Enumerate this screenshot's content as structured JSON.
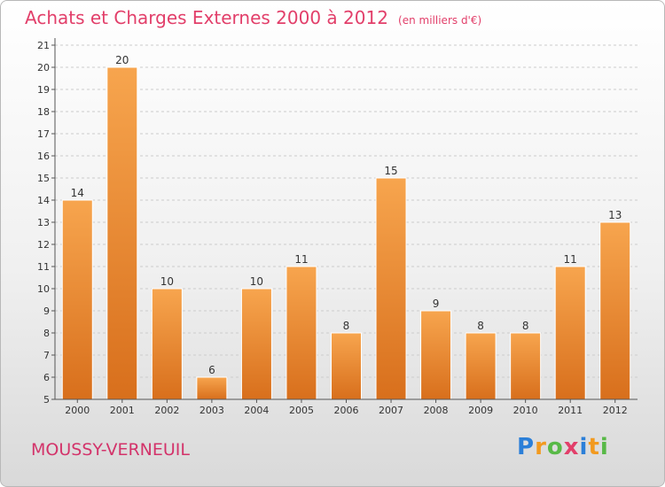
{
  "title": "Achats et Charges Externes 2000 à 2012",
  "unit": "(en milliers d'€)",
  "commune": "MOUSSY-VERNEUIL",
  "brand": {
    "letters": [
      {
        "ch": "P",
        "color": "#2b7fd8"
      },
      {
        "ch": "r",
        "color": "#f29a1f"
      },
      {
        "ch": "o",
        "color": "#58b947"
      },
      {
        "ch": "x",
        "color": "#e23f6a"
      },
      {
        "ch": "i",
        "color": "#2b7fd8"
      },
      {
        "ch": "t",
        "color": "#f29a1f"
      },
      {
        "ch": "i",
        "color": "#58b947"
      }
    ]
  },
  "colors": {
    "bar_top": "#f7a54e",
    "bar_bottom": "#d86f1c",
    "axis": "#555555",
    "grid": "#cccccc",
    "title": "#e23f6a"
  },
  "chart_data": {
    "type": "bar",
    "categories": [
      "2000",
      "2001",
      "2002",
      "2003",
      "2004",
      "2005",
      "2006",
      "2007",
      "2008",
      "2009",
      "2010",
      "2011",
      "2012"
    ],
    "values": [
      14,
      20,
      10,
      6,
      10,
      11,
      8,
      15,
      9,
      8,
      8,
      11,
      13
    ],
    "ylim": [
      5,
      21
    ],
    "yticks": [
      5,
      6,
      7,
      8,
      9,
      10,
      11,
      12,
      13,
      14,
      15,
      16,
      17,
      18,
      19,
      20,
      21
    ],
    "grid": "dashed horizontal",
    "data_labels": true
  }
}
